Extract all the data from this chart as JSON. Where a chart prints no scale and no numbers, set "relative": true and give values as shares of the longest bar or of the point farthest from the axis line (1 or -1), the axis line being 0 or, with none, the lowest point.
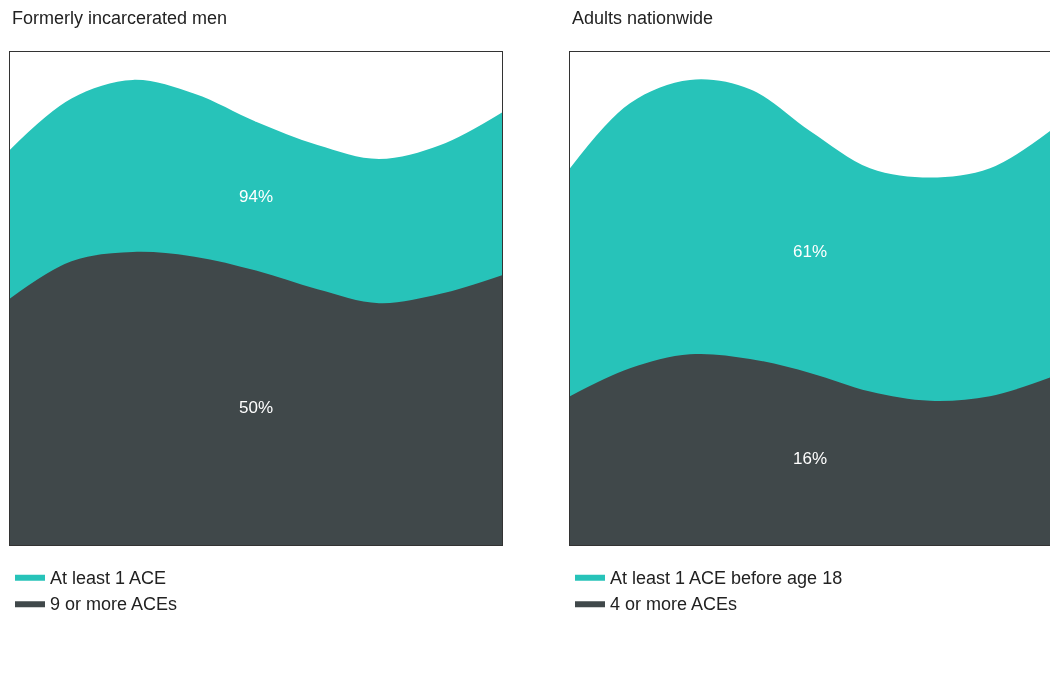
{
  "chart_data": [
    {
      "type": "area",
      "title": "Formerly incarcerated men",
      "relative": true,
      "legend": "bottom",
      "categories": [
        null,
        null,
        null,
        null,
        null,
        null,
        null,
        null,
        null
      ],
      "series": [
        {
          "name": "At least 1 ACE",
          "color": "#27c3b9",
          "values": [
            0.85,
            0.96,
            1,
            0.97,
            0.91,
            0.86,
            0.83,
            0.86,
            0.93
          ]
        },
        {
          "name": "9 or more ACEs",
          "color": "#40484a",
          "values": [
            0.53,
            0.61,
            0.63,
            0.62,
            0.59,
            0.55,
            0.52,
            0.54,
            0.58
          ]
        }
      ],
      "annotations": [
        "94%",
        "50%"
      ]
    },
    {
      "type": "area",
      "title": "Adults nationwide",
      "relative": true,
      "legend": "bottom",
      "categories": [
        null,
        null,
        null,
        null,
        null,
        null,
        null,
        null,
        null
      ],
      "series": [
        {
          "name": "At least 1 ACE before age 18",
          "color": "#27c3b9",
          "values": [
            0.81,
            0.95,
            1,
            0.98,
            0.89,
            0.81,
            0.79,
            0.81,
            0.89
          ]
        },
        {
          "name": "4 or more ACEs",
          "color": "#40484a",
          "values": [
            0.32,
            0.38,
            0.41,
            0.4,
            0.37,
            0.33,
            0.31,
            0.32,
            0.36
          ]
        }
      ],
      "annotations": [
        "61%",
        "16%"
      ]
    }
  ]
}
